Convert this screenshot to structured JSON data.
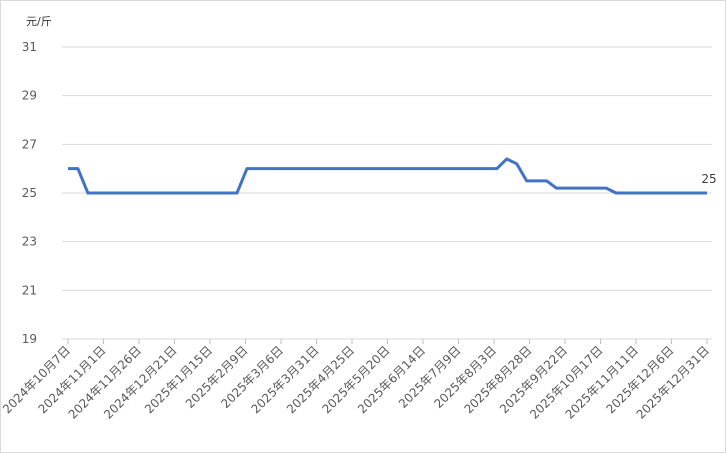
{
  "chart_data": {
    "type": "line",
    "y_unit": "元/斤",
    "x": [
      "2024-10-07",
      "2024-10-14",
      "2024-10-21",
      "2025-02-03",
      "2025-02-10",
      "2025-08-05",
      "2025-08-12",
      "2025-08-19",
      "2025-08-26",
      "2025-09-09",
      "2025-09-16",
      "2025-10-21",
      "2025-10-28",
      "2025-12-31"
    ],
    "values": [
      26,
      26,
      25,
      25,
      26,
      26,
      26.4,
      26.2,
      25.5,
      25.5,
      25.2,
      25.2,
      25,
      25
    ],
    "color": "#4472c4",
    "ylim": [
      19,
      31
    ],
    "yticks": [
      19,
      21,
      23,
      25,
      27,
      29,
      31
    ],
    "grid": true,
    "xlim": [
      "2024-10-07",
      "2025-12-31"
    ],
    "xticks": [
      {
        "value": "2024-10-07",
        "label": "2024年10月7日"
      },
      {
        "value": "2024-11-01",
        "label": "2024年11月1日"
      },
      {
        "value": "2024-11-26",
        "label": "2024年11月26日"
      },
      {
        "value": "2024-12-21",
        "label": "2024年12月21日"
      },
      {
        "value": "2025-01-15",
        "label": "2025年1月15日"
      },
      {
        "value": "2025-02-09",
        "label": "2025年2月9日"
      },
      {
        "value": "2025-03-06",
        "label": "2025年3月6日"
      },
      {
        "value": "2025-03-31",
        "label": "2025年3月31日"
      },
      {
        "value": "2025-04-25",
        "label": "2025年4月25日"
      },
      {
        "value": "2025-05-20",
        "label": "2025年5月20日"
      },
      {
        "value": "2025-06-14",
        "label": "2025年6月14日"
      },
      {
        "value": "2025-07-09",
        "label": "2025年7月9日"
      },
      {
        "value": "2025-08-03",
        "label": "2025年8月3日"
      },
      {
        "value": "2025-08-28",
        "label": "2025年8月28日"
      },
      {
        "value": "2025-09-22",
        "label": "2025年9月22日"
      },
      {
        "value": "2025-10-17",
        "label": "2025年10月17日"
      },
      {
        "value": "2025-11-11",
        "label": "2025年11月11日"
      },
      {
        "value": "2025-12-06",
        "label": "2025年12月6日"
      },
      {
        "value": "2025-12-31",
        "label": "2025年12月31日"
      }
    ]
  }
}
